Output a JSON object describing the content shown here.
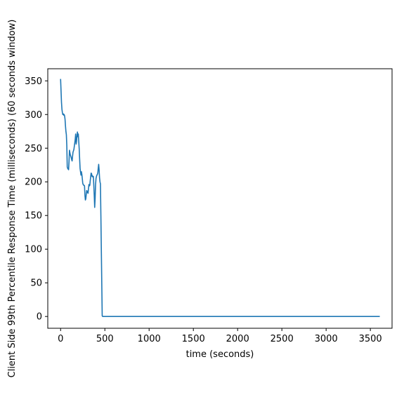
{
  "chart_data": {
    "type": "line",
    "title": "",
    "xlabel": "time (seconds)",
    "ylabel": "Client Side 99th Percentile Response Time (milliseconds) (60 seconds window)",
    "xlim": [
      -145,
      3745
    ],
    "ylim": [
      -17.5,
      368
    ],
    "xticks": [
      0,
      500,
      1000,
      1500,
      2000,
      2500,
      3000,
      3500
    ],
    "yticks": [
      0,
      50,
      100,
      150,
      200,
      250,
      300,
      350
    ],
    "grid": false,
    "legend": "none",
    "series": [
      {
        "color": "#1f77b4",
        "x": [
          0,
          5,
          10,
          15,
          20,
          25,
          30,
          35,
          40,
          45,
          50,
          55,
          60,
          65,
          70,
          75,
          80,
          85,
          90,
          95,
          100,
          105,
          110,
          115,
          120,
          125,
          130,
          135,
          140,
          145,
          150,
          155,
          160,
          165,
          170,
          175,
          180,
          185,
          190,
          195,
          200,
          205,
          210,
          215,
          220,
          225,
          230,
          235,
          240,
          245,
          250,
          255,
          260,
          265,
          270,
          275,
          280,
          285,
          290,
          295,
          300,
          305,
          310,
          315,
          320,
          325,
          330,
          335,
          340,
          345,
          350,
          355,
          360,
          365,
          370,
          375,
          380,
          385,
          390,
          395,
          400,
          405,
          410,
          415,
          420,
          425,
          430,
          435,
          440,
          445,
          450,
          455,
          460,
          465,
          470,
          475,
          480,
          485,
          490,
          495,
          3600
        ],
        "y": [
          352,
          335,
          318,
          308,
          303,
          300,
          301,
          299,
          300,
          298,
          293,
          283,
          275,
          270,
          254,
          222,
          220,
          219,
          218,
          230,
          247,
          243,
          240,
          238,
          236,
          233,
          231,
          238,
          244,
          246,
          248,
          253,
          258,
          263,
          271,
          256,
          260,
          268,
          274,
          267,
          271,
          260,
          249,
          234,
          220,
          215,
          210,
          215,
          211,
          205,
          198,
          196,
          195,
          195,
          194,
          180,
          173,
          175,
          182,
          187,
          186,
          184,
          183,
          190,
          196,
          194,
          195,
          202,
          208,
          213,
          212,
          208,
          209,
          207,
          208,
          195,
          180,
          162,
          175,
          196,
          205,
          208,
          210,
          211,
          213,
          220,
          226,
          218,
          206,
          200,
          197,
          150,
          100,
          50,
          1,
          0,
          0,
          0,
          0,
          0,
          0
        ]
      }
    ]
  }
}
